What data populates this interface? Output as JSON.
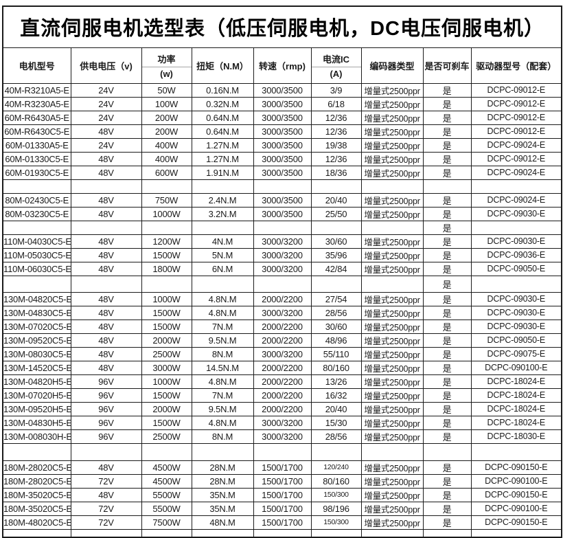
{
  "title": "直流伺服电机选型表（低压伺服电机，DC电压伺服电机）",
  "colors": {
    "background": "#ffffff",
    "grid_border": "#1a1a1a",
    "text": "#1a1a1a"
  },
  "table": {
    "column_keys": [
      "model",
      "voltage",
      "power",
      "torque",
      "speed",
      "current",
      "encoder",
      "brake",
      "driver"
    ],
    "headers": [
      {
        "label": "电机型号"
      },
      {
        "label": "供电电压（v)"
      },
      {
        "label": "功率",
        "sub": "(w)"
      },
      {
        "label": "扭矩（N.M）"
      },
      {
        "label": "转速（rmp)"
      },
      {
        "label": "电流IC",
        "sub": "(A)"
      },
      {
        "label": "编码器类型"
      },
      {
        "label": "是否可刹车"
      },
      {
        "label": "驱动器型号（配套）"
      }
    ],
    "rows": [
      [
        "40M-R3210A5-E",
        "24V",
        "50W",
        "0.16N.M",
        "3000/3500",
        "3/9",
        "增量式2500ppr",
        "是",
        "DCPC-09012-E"
      ],
      [
        "40M-R3230A5-E",
        "24V",
        "100W",
        "0.32N.M",
        "3000/3500",
        "6/18",
        "增量式2500ppr",
        "是",
        "DCPC-09012-E"
      ],
      [
        "60M-R6430A5-E",
        "24V",
        "200W",
        "0.64N.M",
        "3000/3500",
        "12/36",
        "增量式2500ppr",
        "是",
        "DCPC-09012-E"
      ],
      [
        "60M-R6430C5-E",
        "48V",
        "200W",
        "0.64N.M",
        "3000/3500",
        "12/36",
        "增量式2500ppr",
        "是",
        "DCPC-09012-E"
      ],
      [
        "60M-01330A5-E",
        "24V",
        "400W",
        "1.27N.M",
        "3000/3500",
        "19/38",
        "增量式2500ppr",
        "是",
        "DCPC-09024-E"
      ],
      [
        "60M-01330C5-E",
        "48V",
        "400W",
        "1.27N.M",
        "3000/3500",
        "12/36",
        "增量式2500ppr",
        "是",
        "DCPC-09012-E"
      ],
      [
        "60M-01930C5-E",
        "48V",
        "600W",
        "1.91N.M",
        "3000/3500",
        "18/36",
        "增量式2500ppr",
        "是",
        "DCPC-09024-E"
      ],
      [
        "",
        "",
        "",
        "",
        "",
        "",
        "",
        "",
        ""
      ],
      [
        "80M-02430C5-E",
        "48V",
        "750W",
        "2.4N.M",
        "3000/3500",
        "20/40",
        "增量式2500ppr",
        "是",
        "DCPC-09024-E"
      ],
      [
        "80M-03230C5-E",
        "48V",
        "1000W",
        "3.2N.M",
        "3000/3500",
        "25/50",
        "增量式2500ppr",
        "是",
        "DCPC-09030-E"
      ],
      [
        "",
        "",
        "",
        "",
        "",
        "",
        "",
        "是",
        ""
      ],
      [
        "110M-04030C5-E",
        "48V",
        "1200W",
        "4N.M",
        "3000/3200",
        "30/60",
        "增量式2500ppr",
        "是",
        "DCPC-09030-E"
      ],
      [
        "110M-05030C5-E",
        "48V",
        "1500W",
        "5N.M",
        "3000/3200",
        "35/96",
        "增量式2500ppr",
        "是",
        "DCPC-09036-E"
      ],
      [
        "110M-06030C5-E",
        "48V",
        "1800W",
        "6N.M",
        "3000/3200",
        "42/84",
        "增量式2500ppr",
        "是",
        "DCPC-09050-E"
      ],
      [
        "",
        "",
        "",
        "",
        "",
        "",
        "",
        "是",
        ""
      ],
      [
        "130M-04820C5-E",
        "48V",
        "1000W",
        "4.8N.M",
        "2000/2200",
        "27/54",
        "增量式2500ppr",
        "是",
        "DCPC-09030-E"
      ],
      [
        "130M-04830C5-E",
        "48V",
        "1500W",
        "4.8N.M",
        "3000/3200",
        "28/56",
        "增量式2500ppr",
        "是",
        "DCPC-09030-E"
      ],
      [
        "130M-07020C5-E",
        "48V",
        "1500W",
        "7N.M",
        "2000/2200",
        "30/60",
        "增量式2500ppr",
        "是",
        "DCPC-09030-E"
      ],
      [
        "130M-09520C5-E",
        "48V",
        "2000W",
        "9.5N.M",
        "2000/2200",
        "48/96",
        "增量式2500ppr",
        "是",
        "DCPC-09050-E"
      ],
      [
        "130M-08030C5-E",
        "48V",
        "2500W",
        "8N.M",
        "3000/3200",
        "55/110",
        "增量式2500ppr",
        "是",
        "DCPC-09075-E"
      ],
      [
        "130M-14520C5-E",
        "48V",
        "3000W",
        "14.5N.M",
        "2000/2200",
        "80/160",
        "增量式2500ppr",
        "是",
        "DCPC-090100-E"
      ],
      [
        "130M-04820H5-E",
        "96V",
        "1000W",
        "4.8N.M",
        "2000/2200",
        "13/26",
        "增量式2500ppr",
        "是",
        "DCPC-18024-E"
      ],
      [
        "130M-07020H5-E",
        "96V",
        "1500W",
        "7N.M",
        "2000/2200",
        "16/32",
        "增量式2500ppr",
        "是",
        "DCPC-18024-E"
      ],
      [
        "130M-09520H5-E",
        "96V",
        "2000W",
        "9.5N.M",
        "2000/2200",
        "20/40",
        "增量式2500ppr",
        "是",
        "DCPC-18024-E"
      ],
      [
        "130M-04830H5-E",
        "96V",
        "1500W",
        "4.8N.M",
        "3000/3200",
        "15/30",
        "增量式2500ppr",
        "是",
        "DCPC-18024-E"
      ],
      [
        "130M-008030H-E",
        "96V",
        "2500W",
        "8N.M",
        "3000/3200",
        "28/56",
        "增量式2500ppr",
        "是",
        "DCPC-18030-E"
      ],
      [
        "",
        "",
        "",
        "",
        "",
        "",
        "",
        "",
        ""
      ],
      [
        "180M-28020C5-E",
        "48V",
        "4500W",
        "28N.M",
        "1500/1700",
        "120/240",
        "增量式2500ppr",
        "是",
        "DCPC-090150-E"
      ],
      [
        "180M-28020C5-E",
        "72V",
        "4500W",
        "28N.M",
        "1500/1700",
        "80/160",
        "增量式2500ppr",
        "是",
        "DCPC-090100-E"
      ],
      [
        "180M-35020C5-E",
        "48V",
        "5500W",
        "35N.M",
        "1500/1700",
        "150/300",
        "增量式2500ppr",
        "是",
        "DCPC-090150-E"
      ],
      [
        "180M-35020C5-E",
        "72V",
        "5500W",
        "35N.M",
        "1500/1700",
        "98/196",
        "增量式2500ppr",
        "是",
        "DCPC-090100-E"
      ],
      [
        "180M-48020C5-E",
        "72V",
        "7500W",
        "48N.M",
        "1500/1700",
        "150/300",
        "增量式2500ppr",
        "是",
        "DCPC-090150-E"
      ],
      [
        "",
        "",
        "",
        "",
        "",
        "",
        "",
        "",
        ""
      ]
    ]
  }
}
